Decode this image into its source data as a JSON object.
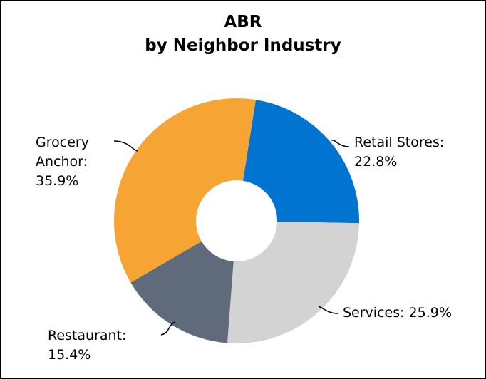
{
  "chart_data": {
    "type": "donut",
    "title": "ABR",
    "subtitle": "by Neighbor Industry",
    "categories": [
      "Retail Stores:",
      "Services:",
      "Restaurant:",
      "Grocery Anchor:"
    ],
    "values": [
      22.8,
      25.9,
      15.4,
      35.9
    ],
    "value_labels": [
      "22.8%",
      "25.9%",
      "15.4%",
      "35.9%"
    ],
    "colors": [
      "#0074d0",
      "#d3d3d3",
      "#5f6b7a",
      "#f6a535"
    ]
  }
}
